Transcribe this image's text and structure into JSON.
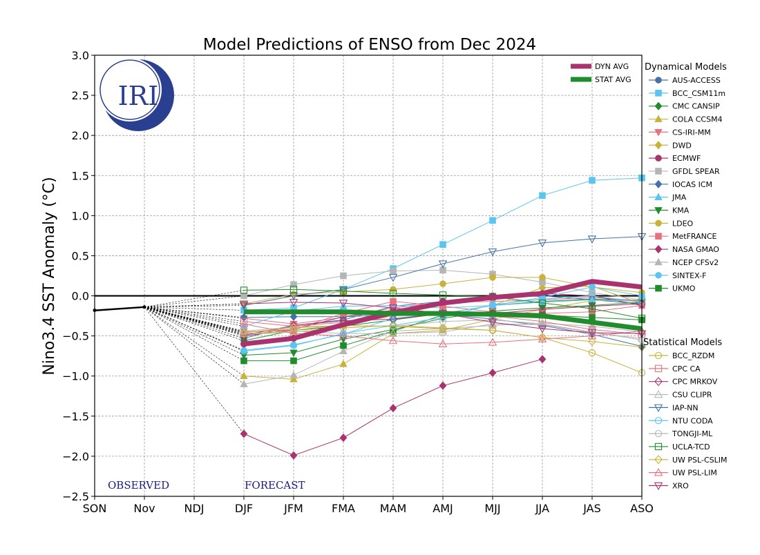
{
  "chart_data": {
    "type": "line",
    "title": "Model Predictions of ENSO from Dec 2024",
    "xlabel": "",
    "ylabel": "Nino3.4 SST Anomaly (°C)",
    "ylim": [
      -2.5,
      3.0
    ],
    "yticks": [
      3.0,
      2.5,
      2.0,
      1.5,
      1.0,
      0.5,
      0.0,
      -0.5,
      -1.0,
      -1.5,
      -2.0,
      -2.5
    ],
    "ytick_labels": [
      "3.0",
      "2.5",
      "2.0",
      "1.5",
      "1.0",
      "0.5",
      "0.0",
      "−0.5",
      "−1.0",
      "−1.5",
      "−2.0",
      "−2.5"
    ],
    "categories": [
      "SON",
      "Nov",
      "NDJ",
      "DJF",
      "JFM",
      "FMA",
      "MAM",
      "AMJ",
      "MJJ",
      "JJA",
      "JAS",
      "ASO"
    ],
    "grid": true,
    "observed_label": "OBSERVED",
    "forecast_label": "FORECAST",
    "logo_text": "IRI",
    "observed": {
      "start_index": -0.4,
      "values": [
        [
          -0.4,
          -0.2
        ],
        [
          1,
          -0.14
        ]
      ]
    },
    "forecast_start_index": 3,
    "averages": [
      {
        "name": "DYN AVG",
        "color": "#a8336f",
        "values": [
          -0.6,
          -0.53,
          -0.36,
          -0.21,
          -0.09,
          -0.02,
          0.03,
          0.18,
          0.11
        ]
      },
      {
        "name": "STAT AVG",
        "color": "#228b2e",
        "values": [
          -0.2,
          -0.2,
          -0.2,
          -0.22,
          -0.22,
          -0.23,
          -0.25,
          -0.33,
          -0.41
        ]
      }
    ],
    "legend_dynamical_title": "Dynamical Models",
    "legend_statistical_title": "Statistical Models",
    "dynamical": [
      {
        "name": "AUS-ACCESS",
        "color": "#4472a8",
        "marker": "circle",
        "values": [
          -0.53,
          -0.37,
          -0.3,
          -0.13,
          -0.07,
          -0.02,
          0.0,
          -0.05,
          -0.1
        ]
      },
      {
        "name": "BCC_CSM11m",
        "color": "#5bc4ef",
        "marker": "square",
        "values": [
          -0.18,
          -0.15,
          0.08,
          0.34,
          0.64,
          0.94,
          1.25,
          1.44,
          1.47
        ]
      },
      {
        "name": "CMC CANSIP",
        "color": "#228b2e",
        "marker": "diamond",
        "values": [
          -0.56,
          -0.43,
          -0.38,
          -0.3,
          -0.22,
          -0.12,
          -0.07,
          -0.04,
          -0.06
        ]
      },
      {
        "name": "COLA CCSM4",
        "color": "#c8b23a",
        "marker": "triangle",
        "values": [
          -1.0,
          -1.04,
          -0.85,
          -0.47,
          -0.43,
          -0.29,
          -0.17,
          -0.06,
          -0.05
        ]
      },
      {
        "name": "CS-IRI-MM",
        "color": "#e9707e",
        "marker": "triangle-down",
        "values": [
          -0.28,
          -0.35,
          -0.27,
          -0.15,
          -0.08,
          -0.07,
          -0.05,
          -0.02,
          -0.06
        ]
      },
      {
        "name": "DWD",
        "color": "#c8b23a",
        "marker": "diamond",
        "values": [
          -0.45,
          -0.43,
          -0.36,
          -0.25,
          -0.22,
          -0.12,
          0.1,
          0.12,
          -0.1
        ]
      },
      {
        "name": "ECMWF",
        "color": "#a8336f",
        "marker": "circle",
        "values": [
          -0.5,
          -0.42,
          -0.26,
          -0.18,
          -0.07,
          0.0,
          0.03,
          0.0,
          -0.12
        ]
      },
      {
        "name": "GFDL SPEAR",
        "color": "#b5b5b5",
        "marker": "square",
        "values": [
          0.0,
          0.14,
          0.25,
          0.31,
          0.32,
          0.27,
          0.17,
          0.04,
          -0.05
        ]
      },
      {
        "name": "IOCAS ICM",
        "color": "#4472a8",
        "marker": "diamond",
        "values": [
          -0.27,
          -0.26,
          -0.26,
          -0.24,
          -0.23,
          -0.29,
          -0.37,
          -0.48,
          -0.63
        ]
      },
      {
        "name": "JMA",
        "color": "#5bc4ef",
        "marker": "triangle",
        "values": [
          -0.38,
          -0.19,
          -0.13,
          -0.12,
          -0.15,
          -0.12,
          -0.08,
          -0.05,
          -0.07
        ]
      },
      {
        "name": "KMA",
        "color": "#228b2e",
        "marker": "triangle-down",
        "values": [
          -0.74,
          -0.71,
          -0.54,
          -0.42,
          -0.28,
          -0.19,
          -0.15,
          -0.12,
          -0.08
        ]
      },
      {
        "name": "LDEO",
        "color": "#c8b23a",
        "marker": "circle",
        "values": [
          -0.1,
          0.02,
          0.05,
          0.08,
          0.15,
          0.23,
          0.23,
          0.11,
          0.04
        ]
      },
      {
        "name": "MetFRANCE",
        "color": "#e9707e",
        "marker": "square",
        "values": [
          -0.45,
          -0.42,
          -0.22,
          -0.07,
          -0.13,
          -0.2,
          -0.22,
          -0.2,
          -0.12
        ]
      },
      {
        "name": "NASA GMAO",
        "color": "#a8336f",
        "marker": "diamond",
        "values": [
          -1.72,
          -1.99,
          -1.77,
          -1.4,
          -1.12,
          -0.96,
          -0.79
        ]
      },
      {
        "name": "NCEP CFSv2",
        "color": "#b5b5b5",
        "marker": "triangle",
        "values": [
          -1.1,
          -0.99,
          -0.69,
          -0.44,
          -0.41,
          -0.37,
          -0.34,
          -0.38,
          -0.45
        ]
      },
      {
        "name": "SINTEX-F",
        "color": "#5bc4ef",
        "marker": "circle",
        "values": [
          -0.68,
          -0.61,
          -0.48,
          -0.28,
          -0.22,
          -0.12,
          -0.02,
          0.11,
          0.0
        ]
      },
      {
        "name": "UKMO",
        "color": "#228b2e",
        "marker": "square",
        "values": [
          -0.81,
          -0.81,
          -0.62,
          -0.44,
          -0.24,
          -0.22,
          -0.24,
          -0.27,
          -0.3
        ]
      }
    ],
    "statistical": [
      {
        "name": "BCC_RZDM",
        "color": "#c8b23a",
        "marker": "circle-open",
        "values": [
          -0.48,
          -0.45,
          -0.4,
          -0.37,
          -0.4,
          -0.43,
          -0.52,
          -0.71,
          -0.96
        ]
      },
      {
        "name": "CPC CA",
        "color": "#e9707e",
        "marker": "square-open",
        "values": [
          -0.32,
          -0.38,
          -0.33,
          -0.18,
          -0.2,
          -0.25,
          -0.32,
          -0.42,
          -0.48
        ]
      },
      {
        "name": "CPC MRKOV",
        "color": "#a8336f",
        "marker": "diamond-open",
        "values": [
          -0.49,
          -0.37,
          -0.31,
          -0.29,
          -0.22,
          -0.22,
          -0.17,
          -0.13,
          -0.1
        ]
      },
      {
        "name": "CSU CLIPR",
        "color": "#b5b5b5",
        "marker": "triangle-open",
        "values": [
          -0.47,
          -0.44,
          -0.47,
          -0.47,
          -0.45,
          -0.35,
          -0.36,
          -0.46,
          -0.53
        ]
      },
      {
        "name": "IAP-NN",
        "color": "#4472a8",
        "marker": "triangle-down-open",
        "values": [
          -0.12,
          0.0,
          0.08,
          0.23,
          0.4,
          0.55,
          0.66,
          0.71,
          0.74
        ]
      },
      {
        "name": "NTU CODA",
        "color": "#5bc4ef",
        "marker": "circle-open",
        "values": [
          -0.69,
          -0.62,
          -0.47,
          -0.37,
          -0.27,
          -0.11,
          -0.04,
          0.0,
          -0.08
        ]
      },
      {
        "name": "TONGJI-ML",
        "color": "#b5b5b5",
        "marker": "circle-open",
        "values": [
          -0.44,
          -0.39,
          -0.37,
          -0.38,
          -0.32,
          -0.3,
          -0.35,
          -0.45,
          -0.55
        ]
      },
      {
        "name": "UCLA-TCD",
        "color": "#228b2e",
        "marker": "square-open",
        "values": [
          0.07,
          0.08,
          0.06,
          0.03,
          0.01,
          -0.01,
          -0.09,
          -0.16,
          -0.28
        ]
      },
      {
        "name": "UW PSL-CSLIM",
        "color": "#c8b23a",
        "marker": "diamond-open",
        "values": [
          -0.46,
          -0.4,
          -0.37,
          -0.38,
          -0.41,
          -0.43,
          -0.52,
          -0.57,
          -0.64
        ]
      },
      {
        "name": "UW PSL-LIM",
        "color": "#e9707e",
        "marker": "triangle-open",
        "values": [
          -0.35,
          -0.47,
          -0.5,
          -0.56,
          -0.6,
          -0.58,
          -0.54,
          -0.5,
          -0.44
        ]
      },
      {
        "name": "XRO",
        "color": "#a8336f",
        "marker": "triangle-down-open",
        "values": [
          -0.1,
          -0.08,
          -0.09,
          -0.15,
          -0.22,
          -0.33,
          -0.41,
          -0.46,
          -0.47
        ]
      }
    ]
  }
}
